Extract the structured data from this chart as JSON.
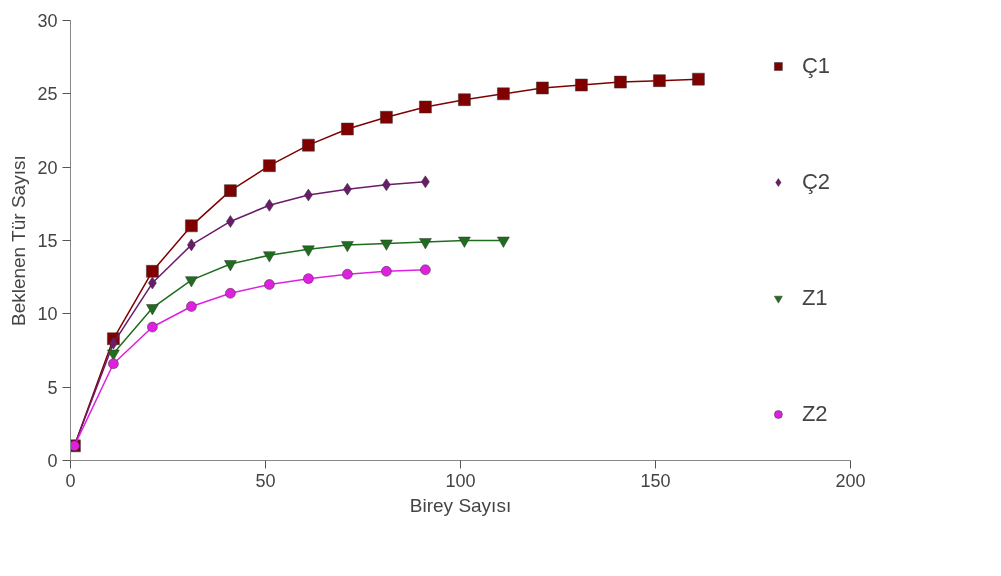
{
  "chart_data": {
    "type": "line",
    "xlabel": "Birey Sayısı",
    "ylabel": "Beklenen Tür Sayısı",
    "xlim": [
      0,
      200
    ],
    "xticks": [
      0,
      50,
      100,
      150,
      200
    ],
    "ylim": [
      0,
      30
    ],
    "yticks": [
      0,
      5,
      10,
      15,
      20,
      25,
      30
    ],
    "grid": false,
    "legend": "right",
    "series": [
      {
        "name": "Ç1",
        "color": "#800000",
        "marker": "square",
        "x": [
          1,
          11,
          21,
          31,
          41,
          51,
          61,
          71,
          81,
          91,
          101,
          111,
          121,
          131,
          141,
          151,
          161
        ],
        "values": [
          1.0,
          8.3,
          12.9,
          16.0,
          18.4,
          20.1,
          21.5,
          22.6,
          23.4,
          24.1,
          24.6,
          25.0,
          25.4,
          25.6,
          25.8,
          25.9,
          26.0
        ]
      },
      {
        "name": "Ç2",
        "color": "#6a1b6a",
        "marker": "diamond",
        "x": [
          1,
          11,
          21,
          31,
          41,
          51,
          61,
          71,
          81,
          91
        ],
        "values": [
          1.0,
          8.0,
          12.1,
          14.7,
          16.3,
          17.4,
          18.1,
          18.5,
          18.8,
          19.0
        ]
      },
      {
        "name": "Z1",
        "color": "#1e6e1e",
        "marker": "triangle",
        "x": [
          11,
          21,
          31,
          41,
          51,
          61,
          71,
          81,
          91,
          101,
          111
        ],
        "values": [
          7.3,
          10.4,
          12.3,
          13.4,
          14.0,
          14.4,
          14.7,
          14.8,
          14.9,
          15.0,
          15.0
        ]
      },
      {
        "name": "Z2",
        "color": "#e020e0",
        "marker": "circle",
        "x": [
          1,
          11,
          21,
          31,
          41,
          51,
          61,
          71,
          81,
          91
        ],
        "values": [
          1.0,
          6.6,
          9.1,
          10.5,
          11.4,
          12.0,
          12.4,
          12.7,
          12.9,
          13.0
        ]
      }
    ]
  }
}
